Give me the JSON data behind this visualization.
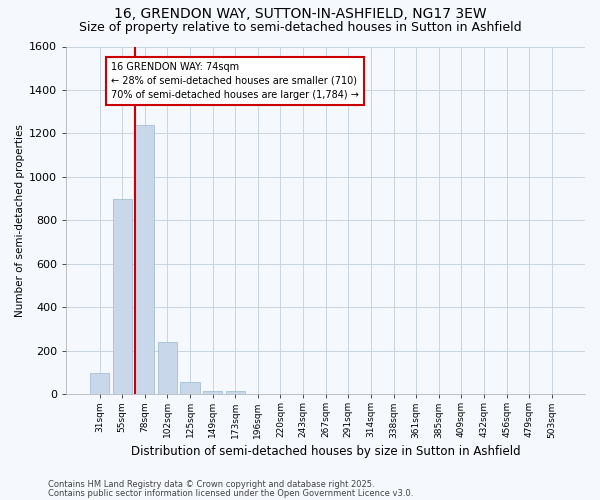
{
  "title": "16, GRENDON WAY, SUTTON-IN-ASHFIELD, NG17 3EW",
  "subtitle": "Size of property relative to semi-detached houses in Sutton in Ashfield",
  "xlabel": "Distribution of semi-detached houses by size in Sutton in Ashfield",
  "ylabel": "Number of semi-detached properties",
  "categories": [
    "31sqm",
    "55sqm",
    "78sqm",
    "102sqm",
    "125sqm",
    "149sqm",
    "173sqm",
    "196sqm",
    "220sqm",
    "243sqm",
    "267sqm",
    "291sqm",
    "314sqm",
    "338sqm",
    "361sqm",
    "385sqm",
    "409sqm",
    "432sqm",
    "456sqm",
    "479sqm",
    "503sqm"
  ],
  "values": [
    100,
    900,
    1240,
    240,
    55,
    15,
    15,
    0,
    0,
    0,
    0,
    0,
    0,
    0,
    0,
    0,
    0,
    0,
    0,
    0,
    0
  ],
  "bar_color": "#c8d8ea",
  "bar_edge_color": "#9ab8d0",
  "annotation_text": "16 GRENDON WAY: 74sqm\n← 28% of semi-detached houses are smaller (710)\n70% of semi-detached houses are larger (1,784) →",
  "ylim": [
    0,
    1600
  ],
  "yticks": [
    0,
    200,
    400,
    600,
    800,
    1000,
    1200,
    1400,
    1600
  ],
  "footer_line1": "Contains HM Land Registry data © Crown copyright and database right 2025.",
  "footer_line2": "Contains public sector information licensed under the Open Government Licence v3.0.",
  "bg_color": "#f5f8fc",
  "grid_color": "#c8d4e0",
  "title_fontsize": 10,
  "subtitle_fontsize": 9,
  "annotation_box_edge_color": "#cc0000",
  "red_line_color": "#cc0000",
  "red_line_bar_index": 2
}
